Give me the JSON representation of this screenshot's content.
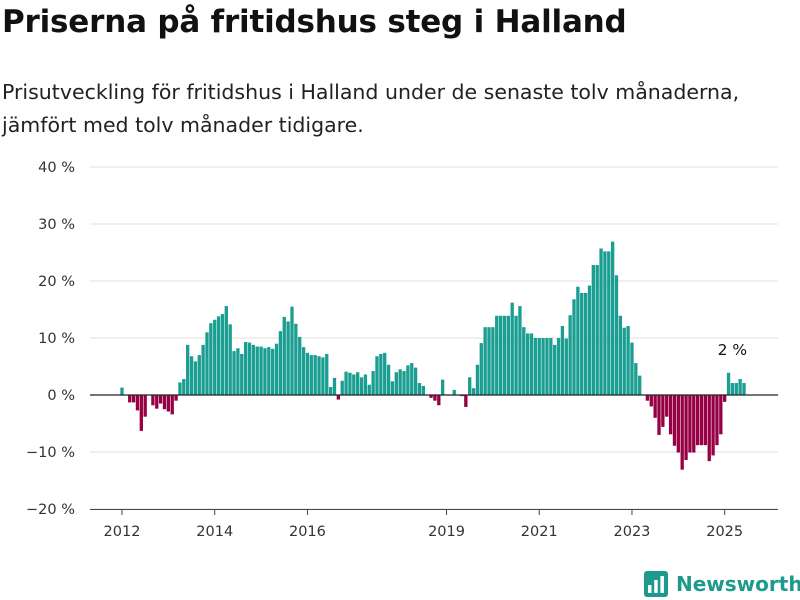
{
  "title": "Priserna på fritidshus steg i Halland",
  "subtitle": "Prisutveckling för fritidshus i Halland under de senaste tolv månaderna, jämfört med tolv månader tidigare.",
  "brand": "Newsworthy",
  "colors": {
    "positive": "#1a9e91",
    "negative": "#960045",
    "accent": "#1e9a8c",
    "grid": "#e2e2e2",
    "zero_line": "#222222"
  },
  "chart_data": {
    "type": "bar",
    "ylim": [
      -20,
      40
    ],
    "yticks": [
      -20,
      -10,
      0,
      10,
      20,
      30,
      40
    ],
    "ytick_labels": [
      "−20 %",
      "−10 %",
      "0 %",
      "10 %",
      "20 %",
      "30 %",
      "40 %"
    ],
    "xtick_labels": [
      "2012",
      "2014",
      "2016",
      "2019",
      "2021",
      "2023",
      "2025"
    ],
    "xtick_dates": [
      "2012-01",
      "2014-01",
      "2016-01",
      "2019-01",
      "2021-01",
      "2023-01",
      "2025-01"
    ],
    "grid": true,
    "annotation": {
      "text": "2 %",
      "date": "2025-03"
    },
    "start": "2012-01",
    "end": "2025-03",
    "series": [
      {
        "unit": "%",
        "values": [
          1.3,
          0,
          -1.3,
          -1.3,
          -2.7,
          -6.3,
          -3.8,
          0,
          -1.8,
          -2.4,
          -1.5,
          -2.5,
          -2.9,
          -3.4,
          -1,
          2.2,
          2.8,
          8.8,
          6.8,
          5.9,
          7,
          8.8,
          11,
          12.6,
          13.2,
          13.8,
          14.2,
          15.6,
          12.4,
          7.7,
          8.2,
          7.2,
          9.3,
          9.2,
          8.8,
          8.5,
          8.5,
          8.2,
          8.4,
          8.1,
          9,
          11.2,
          13.7,
          12.9,
          15.5,
          12.5,
          10.2,
          8.4,
          7.4,
          7,
          7,
          6.8,
          6.6,
          7.2,
          1.4,
          3,
          -0.8,
          2.5,
          4.1,
          3.9,
          3.6,
          4,
          3.1,
          3.6,
          1.8,
          4.2,
          6.8,
          7.2,
          7.4,
          5.3,
          2.4,
          4,
          4.5,
          4.2,
          5.2,
          5.6,
          4.8,
          2.1,
          1.6,
          0,
          -0.5,
          -1,
          -1.8,
          2.7,
          0.1,
          0,
          0.9,
          0,
          -0.2,
          -2.1,
          3.1,
          1.2,
          5.3,
          9.1,
          11.9,
          11.9,
          11.9,
          13.9,
          13.9,
          13.9,
          13.9,
          16.2,
          13.9,
          15.6,
          11.9,
          10.8,
          10.8,
          10,
          10,
          10,
          10,
          10,
          8.8,
          10,
          12.1,
          9.9,
          14,
          16.8,
          19,
          17.9,
          17.9,
          19.2,
          22.8,
          22.8,
          25.7,
          25.2,
          25.2,
          26.9,
          21,
          13.9,
          11.8,
          12.1,
          9.2,
          5.6,
          3.4,
          0,
          -1,
          -2,
          -4,
          -7,
          -5.6,
          -3.8,
          -6.9,
          -8.9,
          -10.1,
          -13.1,
          -11.4,
          -10.1,
          -10.1,
          -8.8,
          -8.8,
          -8.8,
          -11.6,
          -10.6,
          -8.8,
          -6.9,
          -1.2,
          3.9,
          2.1,
          2.1,
          2.8,
          2.1
        ]
      }
    ]
  }
}
